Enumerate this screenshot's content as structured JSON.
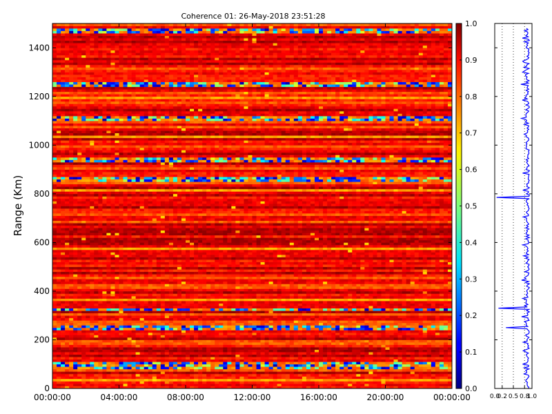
{
  "chart_data": [
    {
      "type": "heatmap",
      "title": "Coherence 01: 26-May-2018 23:51:28",
      "xlabel": "",
      "ylabel": "Range (Km)",
      "x_ticks": [
        "00:00:00",
        "04:00:00",
        "08:00:00",
        "12:00:00",
        "16:00:00",
        "20:00:00",
        "00:00:00"
      ],
      "xlim": [
        "26-May-2018 00:00:00",
        "27-May-2018 00:00:00"
      ],
      "y_ticks": [
        0,
        200,
        400,
        600,
        800,
        1000,
        1200,
        1400
      ],
      "ylim": [
        0,
        1500
      ],
      "colorbar": {
        "ticks": [
          0.0,
          0.1,
          0.2,
          0.3,
          0.4,
          0.5,
          0.6,
          0.7,
          0.8,
          0.9,
          1.0
        ],
        "range": [
          0.0,
          1.0
        ],
        "colormap": "jet"
      },
      "low_coherence_ranges_km": [
        82,
        100,
        250,
        325,
        860,
        940,
        1110,
        1250,
        1470
      ],
      "grid": false
    },
    {
      "type": "line",
      "orientation": "vertical-profile",
      "x_ticks": [
        "0.0",
        "0.2",
        "0.5",
        "0.8",
        "1.0"
      ],
      "xlim": [
        0.0,
        1.0
      ],
      "ylim": [
        0,
        1500
      ],
      "color": "#0000ff",
      "profile_dips": [
        {
          "range_km": 1470,
          "value": 0.8
        },
        {
          "range_km": 1300,
          "value": 0.75
        },
        {
          "range_km": 1250,
          "value": 0.7
        },
        {
          "range_km": 1110,
          "value": 0.72
        },
        {
          "range_km": 885,
          "value": 0.75
        },
        {
          "range_km": 785,
          "value": 0.05
        },
        {
          "range_km": 590,
          "value": 0.75
        },
        {
          "range_km": 455,
          "value": 0.8
        },
        {
          "range_km": 330,
          "value": 0.1
        },
        {
          "range_km": 250,
          "value": 0.3
        },
        {
          "range_km": 100,
          "value": 0.75
        }
      ],
      "grid": "dotted vertical"
    }
  ]
}
